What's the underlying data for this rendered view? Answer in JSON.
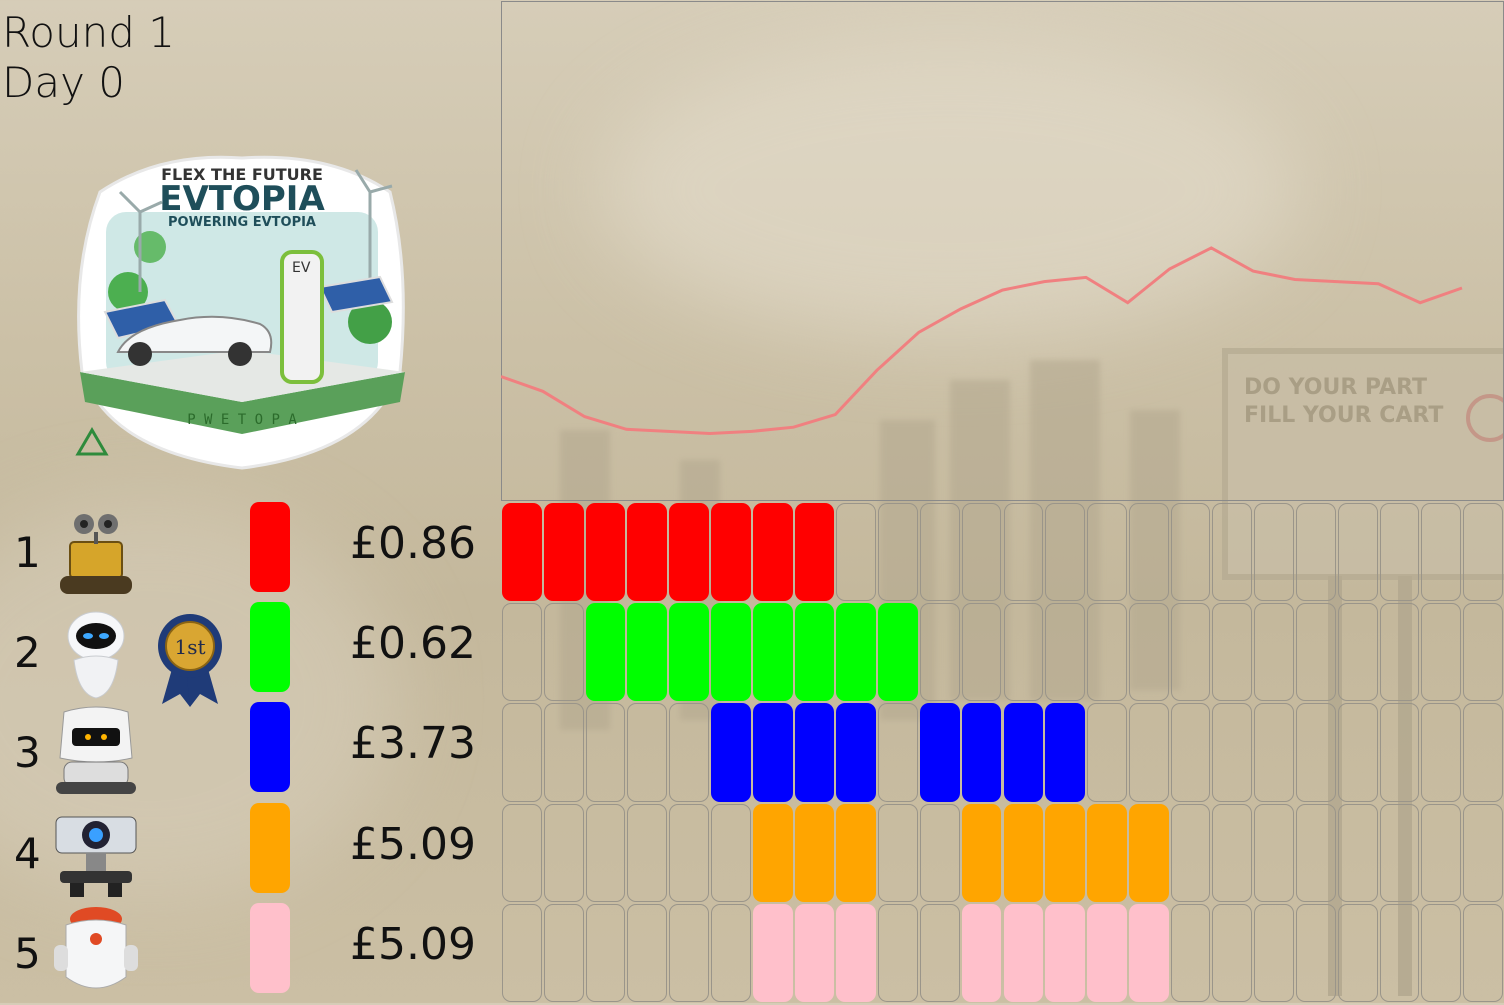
{
  "header": {
    "round": "Round 1",
    "day": "Day 0"
  },
  "logo": {
    "top_text": "FLEX THE FUTURE",
    "title": "EVTOPIA",
    "subtitle": "POWERING EVTOPIA",
    "base_text": "P W E T O P A",
    "charger_label": "EV"
  },
  "billboard": {
    "line1": "DO YOUR PART",
    "line2": "FILL YOUR CART"
  },
  "award": {
    "text": "1st"
  },
  "colors": {
    "red": "#ff0000",
    "green": "#00ff00",
    "blue": "#0000ff",
    "orange": "#ffa500",
    "pink": "#ffc0cb",
    "price_line": "#f08080"
  },
  "players": [
    {
      "rank": "1",
      "avatar": "robot-wall-e",
      "color": "#ff0000",
      "price": "£0.86",
      "slots": [
        0,
        1,
        2,
        3,
        4,
        5,
        6,
        7
      ]
    },
    {
      "rank": "2",
      "avatar": "robot-eve",
      "color": "#00ff00",
      "price": "£0.62",
      "slots": [
        2,
        3,
        4,
        5,
        6,
        7,
        8,
        9
      ],
      "award": "1st"
    },
    {
      "rank": "3",
      "avatar": "robot-mo",
      "color": "#0000ff",
      "price": "£3.73",
      "slots": [
        5,
        6,
        7,
        8,
        10,
        11,
        12,
        13
      ]
    },
    {
      "rank": "4",
      "avatar": "robot-projector",
      "color": "#ffa500",
      "price": "£5.09",
      "slots": [
        6,
        7,
        8,
        11,
        12,
        13,
        14,
        15
      ]
    },
    {
      "rank": "5",
      "avatar": "robot-capsule",
      "color": "#ffc0cb",
      "price": "£5.09",
      "slots": [
        6,
        7,
        8,
        11,
        12,
        13,
        14,
        15
      ]
    }
  ],
  "schedule": {
    "columns": 24
  },
  "chart_data": {
    "type": "line",
    "x": [
      0,
      1,
      2,
      3,
      4,
      5,
      6,
      7,
      8,
      9,
      10,
      11,
      12,
      13,
      14,
      15,
      16,
      17,
      18,
      19,
      20,
      21,
      22,
      23
    ],
    "series": [
      {
        "values": [
          0.59,
          0.52,
          0.4,
          0.34,
          0.33,
          0.32,
          0.33,
          0.35,
          0.41,
          0.62,
          0.8,
          0.91,
          1.0,
          1.04,
          1.06,
          0.94,
          1.1,
          1.2,
          1.09,
          1.05,
          1.04,
          1.03,
          0.94,
          1.01
        ]
      }
    ],
    "ylim": [
      0,
      3.2
    ],
    "grid": false
  }
}
